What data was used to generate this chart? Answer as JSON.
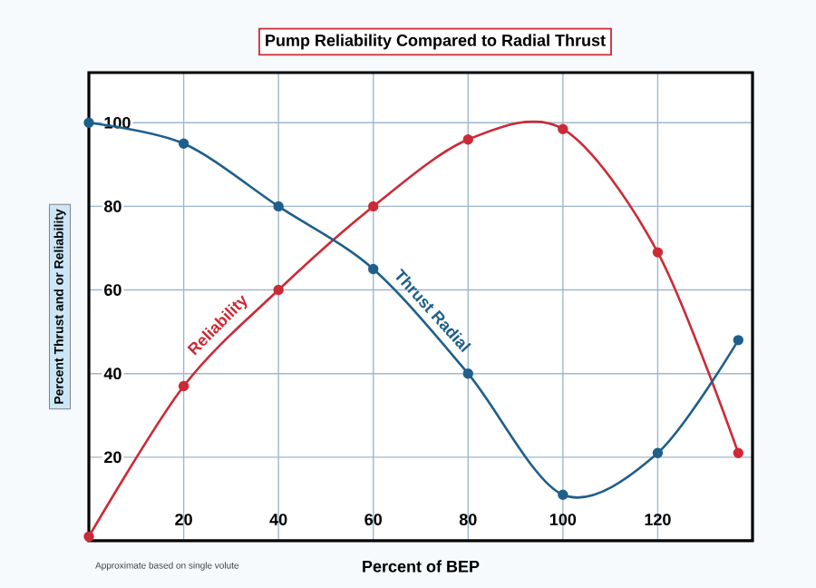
{
  "chart_data": {
    "type": "line",
    "title": "Pump Reliability Compared to Radial Thrust",
    "xlabel": "Percent of BEP",
    "ylabel": "Percent Thrust and or Reliability",
    "annotations": [
      "Approximate based on single volute"
    ],
    "x": [
      0,
      20,
      40,
      60,
      80,
      100,
      120,
      137
    ],
    "series": [
      {
        "name": "Reliability",
        "color": "#cc2a36",
        "values": [
          1,
          37,
          60,
          80,
          96,
          98.5,
          69,
          21
        ]
      },
      {
        "name": "Thrust Radial",
        "color": "#1f5f8b",
        "values": [
          100,
          95,
          80,
          65,
          40,
          11,
          21,
          48
        ]
      }
    ],
    "xlim": [
      0,
      140
    ],
    "ylim": [
      0,
      112
    ],
    "xticks": [
      20,
      40,
      60,
      80,
      100,
      120
    ],
    "yticks": [
      20,
      40,
      60,
      80,
      100
    ],
    "grid": true,
    "legend": false,
    "marker": "circle",
    "line_style": "solid"
  }
}
